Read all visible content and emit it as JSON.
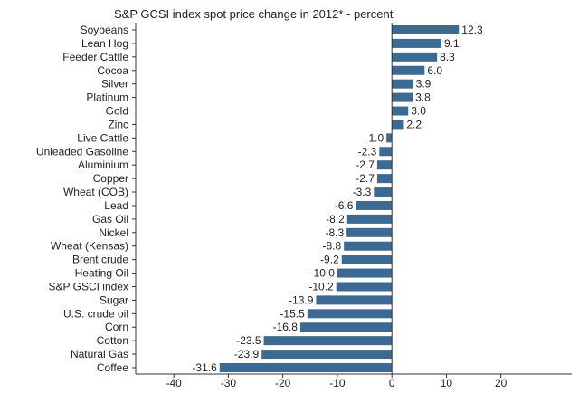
{
  "chart_data": {
    "type": "bar",
    "orientation": "horizontal",
    "title": "S&P GCSI index spot price change in 2012* - percent",
    "xlabel": "",
    "ylabel": "",
    "categories": [
      "Soybeans",
      "Lean Hog",
      "Feeder Cattle",
      "Cocoa",
      "Silver",
      "Platinum",
      "Gold",
      "Zinc",
      "Live Cattle",
      "Unleaded Gasoline",
      "Aluminium",
      "Copper",
      "Wheat (COB)",
      "Lead",
      "Gas Oil",
      "Nickel",
      "Wheat (Kensas)",
      "Brent crude",
      "Heating Oil",
      "S&P GSCI index",
      "Sugar",
      "U.S. crude oil",
      "Corn",
      "Cotton",
      "Natural Gas",
      "Coffee"
    ],
    "values": [
      12.3,
      9.1,
      8.3,
      6.0,
      3.9,
      3.8,
      3.0,
      2.2,
      -1.0,
      -2.3,
      -2.7,
      -2.7,
      -3.3,
      -6.6,
      -8.2,
      -8.3,
      -8.8,
      -9.2,
      -10.0,
      -10.2,
      -13.9,
      -15.5,
      -16.8,
      -23.5,
      -23.9,
      -31.6
    ],
    "value_labels": [
      "12.3",
      "9.1",
      "8.3",
      "6.0",
      "3.9",
      "3.8",
      "3.0",
      "2.2",
      "-1.0",
      "-2.3",
      "-2.7",
      "-2.7",
      "-3.3",
      "-6.6",
      "-8.2",
      "-8.3",
      "-8.8",
      "-9.2",
      "-10.0",
      "-10.2",
      "-13.9",
      "-15.5",
      "-16.8",
      "-23.5",
      "-23.9",
      "-31.6"
    ],
    "xlim": [
      -47,
      33
    ],
    "xticks": [
      -40,
      -30,
      -20,
      -10,
      0,
      10,
      20
    ],
    "xtick_labels": [
      "-40",
      "-30",
      "-20",
      "-10",
      "0",
      "10",
      "20"
    ],
    "grid": false,
    "legend": "none",
    "colors": {
      "bar": "#3d6a93",
      "axis": "#333333"
    }
  }
}
